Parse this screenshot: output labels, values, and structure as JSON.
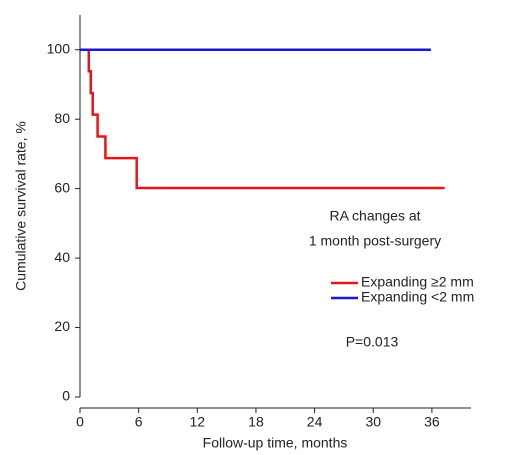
{
  "chart_data": {
    "type": "line",
    "step": true,
    "x_label": "Follow-up time, months",
    "y_label": "Cumulative survival rate, %",
    "xlim": [
      0,
      40
    ],
    "xticks": [
      0,
      6,
      12,
      18,
      24,
      30,
      36
    ],
    "ylim": [
      0,
      110
    ],
    "yticks": [
      0,
      20,
      40,
      60,
      80,
      100
    ],
    "annotations": [
      "RA changes at",
      "1 month post-surgery",
      "P=0.013"
    ],
    "series": [
      {
        "name": "Expanding ≥2 mm",
        "color": "#e8141b",
        "x": [
          0,
          0.9,
          1.1,
          1.3,
          1.8,
          2.6,
          5.8,
          37.3
        ],
        "values": [
          100,
          93.8,
          87.5,
          81.3,
          75,
          68.8,
          60.2,
          60.2
        ]
      },
      {
        "name": "Expanding <2 mm",
        "color": "#1a1acc",
        "x": [
          0,
          35.9
        ],
        "values": [
          100,
          100
        ]
      }
    ]
  }
}
